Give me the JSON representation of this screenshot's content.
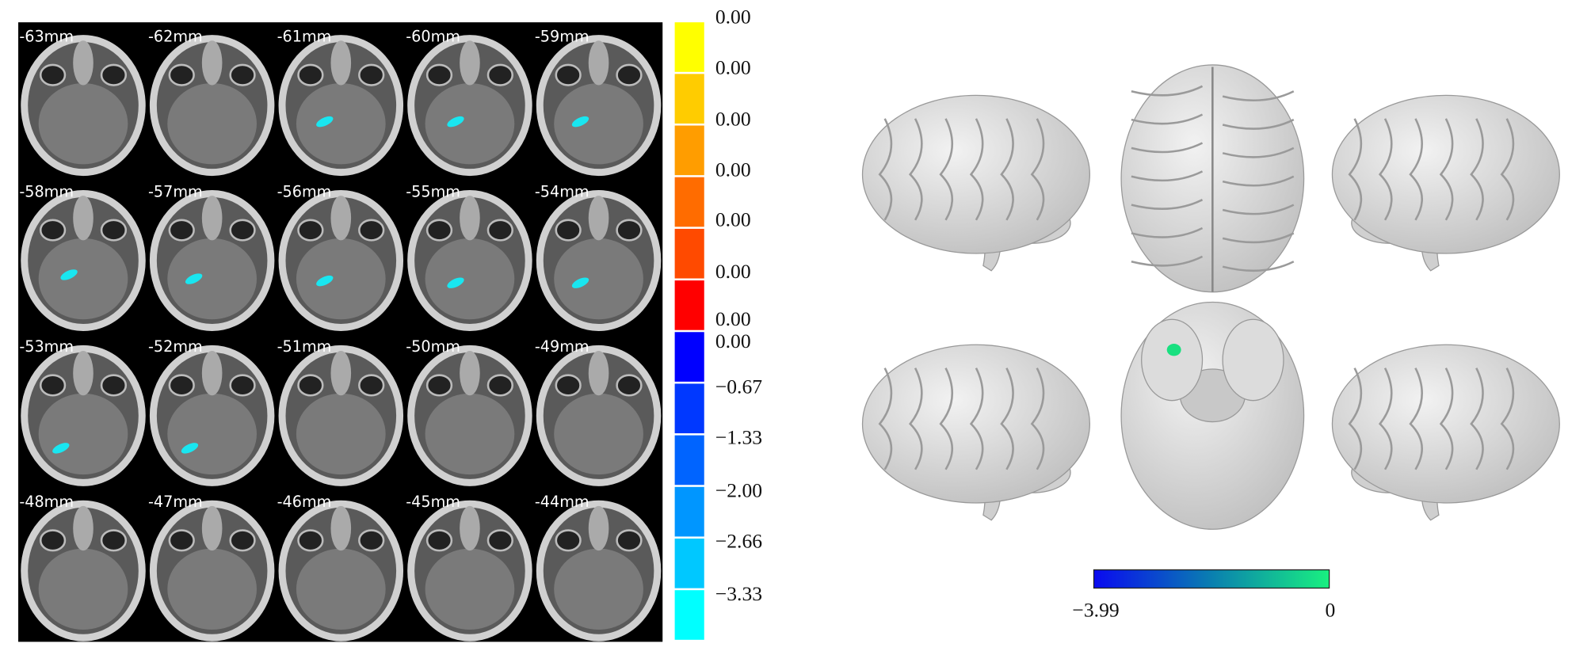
{
  "slices": [
    "-63mm",
    "-62mm",
    "-61mm",
    "-60mm",
    "-59mm",
    "-58mm",
    "-57mm",
    "-56mm",
    "-55mm",
    "-54mm",
    "-53mm",
    "-52mm",
    "-51mm",
    "-50mm",
    "-49mm",
    "-48mm",
    "-47mm",
    "-46mm",
    "-45mm",
    "-44mm"
  ],
  "colorbar_labels": [
    "0.00",
    "0.00",
    "0.00",
    "0.00",
    "0.00",
    "0.00",
    "0.00",
    "0.00",
    "−0.67",
    "−1.33",
    "−2.00",
    "−2.66",
    "−3.33"
  ],
  "surface_colorbar": {
    "min_label": "−3.99",
    "max_label": "0"
  }
}
